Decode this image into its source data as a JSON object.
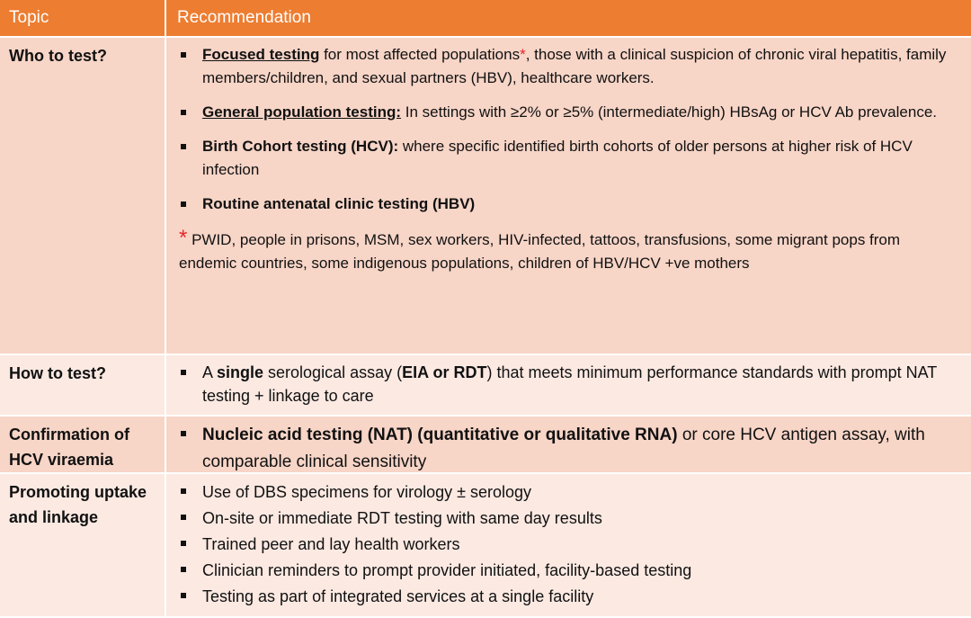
{
  "table": {
    "header": [
      "Topic",
      "Recommendation"
    ],
    "rows": [
      {
        "topic": "Who to test?",
        "items": [
          [
            "Focused testing",
            " for most affected populations",
            "*",
            ", those with a clinical suspicion of chronic viral hepatitis, family members/children, and sexual partners (HBV), healthcare workers."
          ],
          [
            "General population testing:",
            " In settings with ≥2% or ≥5% (intermediate/high) HBsAg  or HCV Ab prevalence."
          ],
          [
            "Birth Cohort testing (HCV):",
            " where specific identified birth cohorts of older persons at higher risk of HCV infection"
          ],
          [
            "Routine antenatal clinic testing (HBV)"
          ]
        ],
        "note": [
          "*",
          "PWID, people in prisons, MSM, sex workers, HIV-infected, tattoos, transfusions, some migrant pops from endemic countries, some indigenous populations, children of HBV/HCV +ve mothers"
        ]
      },
      {
        "topic": "How to test?",
        "items": [
          [
            "A ",
            "single",
            " serological assay (",
            "EIA or RDT",
            ") that meets minimum performance standards with prompt NAT testing + linkage to care"
          ]
        ]
      },
      {
        "topic": "Confirmation of HCV viraemia",
        "items": [
          [
            "Nucleic acid testing (NAT) (quantitative or qualitative RNA)",
            " or core HCV antigen assay, with comparable clinical sensitivity"
          ]
        ]
      },
      {
        "topic": "Promoting uptake and linkage",
        "items": [
          [
            "Use of DBS specimens for virology ± serology"
          ],
          [
            "On-site or immediate RDT testing with same day results"
          ],
          [
            "Trained peer and lay health workers"
          ],
          [
            "Clinician reminders to prompt provider initiated, facility-based testing"
          ],
          [
            "Testing as part of integrated services at a single facility"
          ]
        ]
      }
    ]
  }
}
